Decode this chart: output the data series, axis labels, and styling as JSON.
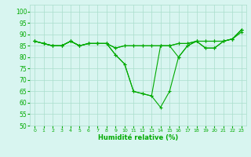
{
  "xlabel": "Humidité relative (%)",
  "ylabel": "",
  "bg_color": "#d8f5f0",
  "grid_color": "#aaddcc",
  "line_color": "#00aa00",
  "xlim": [
    -0.5,
    23.5
  ],
  "ylim": [
    50,
    103
  ],
  "yticks": [
    50,
    55,
    60,
    65,
    70,
    75,
    80,
    85,
    90,
    95,
    100
  ],
  "xticks": [
    0,
    1,
    2,
    3,
    4,
    5,
    6,
    7,
    8,
    9,
    10,
    11,
    12,
    13,
    14,
    15,
    16,
    17,
    18,
    19,
    20,
    21,
    22,
    23
  ],
  "series": [
    [
      87,
      86,
      85,
      85,
      87,
      85,
      86,
      86,
      86,
      84,
      85,
      85,
      85,
      85,
      85,
      85,
      86,
      86,
      87,
      87,
      87,
      87,
      88,
      91
    ],
    [
      87,
      86,
      85,
      85,
      87,
      85,
      86,
      86,
      86,
      84,
      85,
      85,
      85,
      85,
      85,
      85,
      86,
      86,
      87,
      87,
      87,
      87,
      88,
      92
    ],
    [
      87,
      86,
      85,
      85,
      87,
      85,
      86,
      86,
      86,
      81,
      77,
      65,
      64,
      63,
      85,
      85,
      80,
      85,
      87,
      84,
      84,
      87,
      88,
      92
    ],
    [
      87,
      86,
      85,
      85,
      87,
      85,
      86,
      86,
      86,
      81,
      77,
      65,
      64,
      63,
      58,
      65,
      80,
      85,
      87,
      84,
      84,
      87,
      88,
      92
    ]
  ]
}
